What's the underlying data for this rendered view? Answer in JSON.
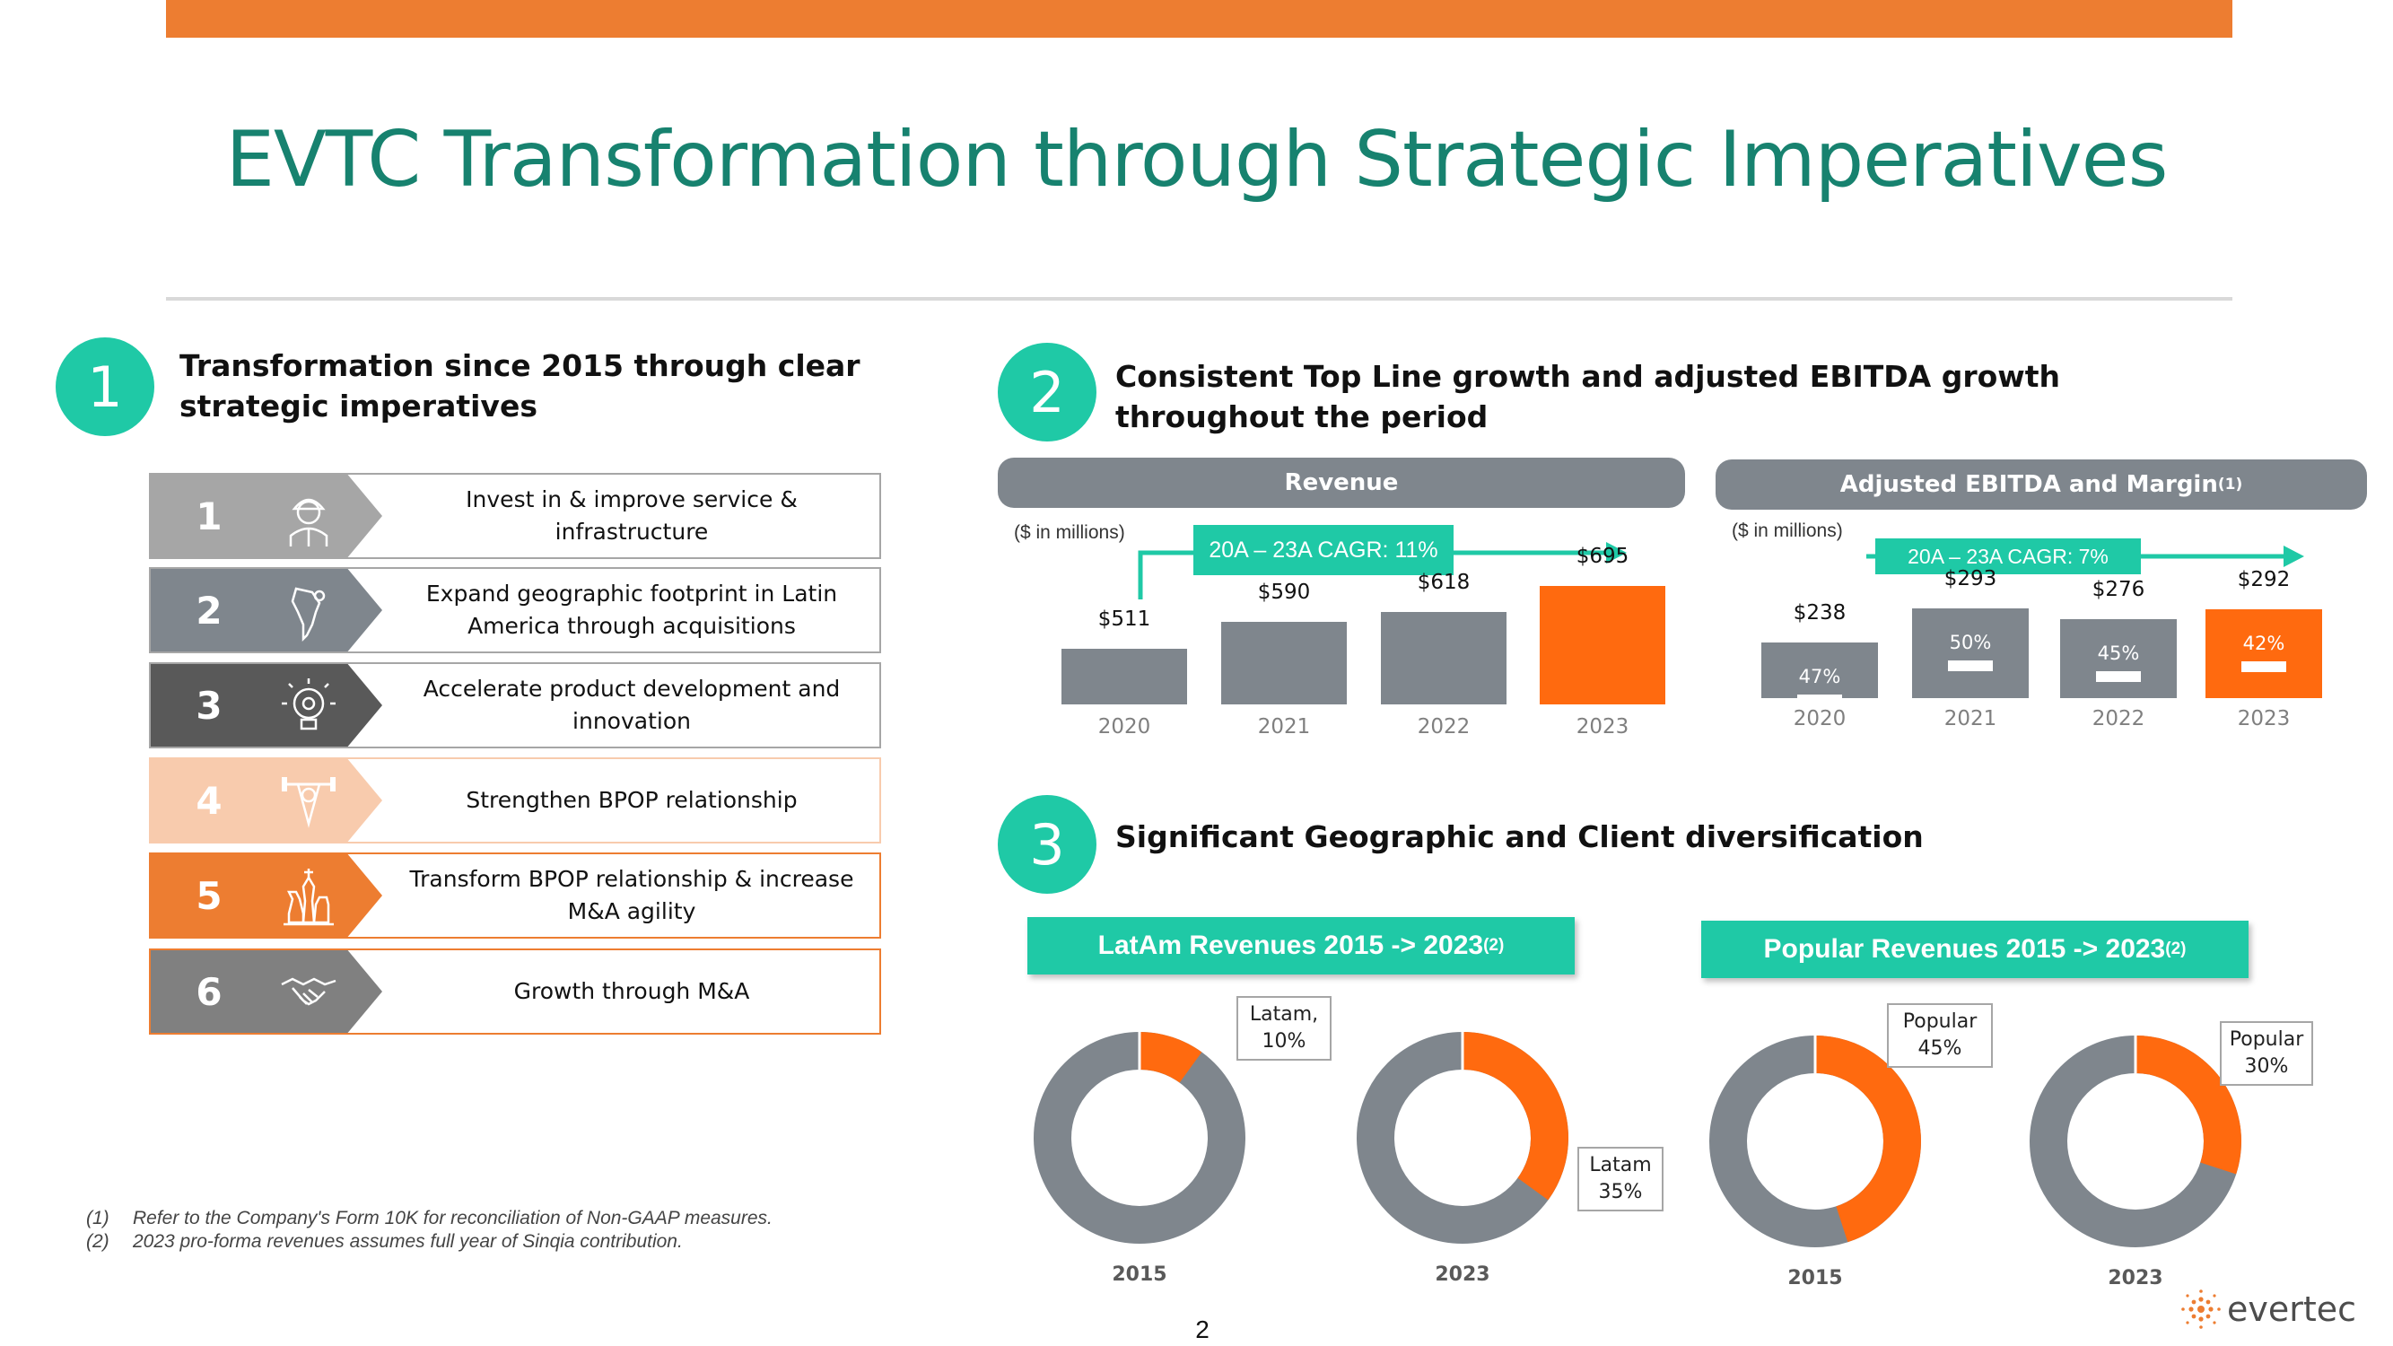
{
  "page": {
    "title": "EVTC Transformation through Strategic Imperatives",
    "page_number": "2",
    "accent": "#ED7D31",
    "teal": "#1FC9A6",
    "title_color": "#17826F",
    "logo_text": "evertec"
  },
  "section1": {
    "number": "1",
    "title": "Transformation since 2015 through clear strategic imperatives",
    "items": [
      {
        "num": "1",
        "text": "Invest in & improve service & infrastructure",
        "icon": "worker-icon",
        "color": "#A6A6A6"
      },
      {
        "num": "2",
        "text": "Expand geographic footprint in Latin America through acquisitions",
        "icon": "latam-map-icon",
        "color": "#7F868D"
      },
      {
        "num": "3",
        "text": "Accelerate product development and innovation",
        "icon": "lightbulb-gear-icon",
        "color": "#595959"
      },
      {
        "num": "4",
        "text": "Strengthen BPOP relationship",
        "icon": "weightlifter-icon",
        "color": "#F8CBAD"
      },
      {
        "num": "5",
        "text": "Transform BPOP relationship & increase M&A agility",
        "icon": "chess-pieces-icon",
        "color": "#ED7D31"
      },
      {
        "num": "6",
        "text": "Growth through M&A",
        "icon": "handshake-icon",
        "color": "#808080"
      }
    ]
  },
  "section2": {
    "number": "2",
    "title": "Consistent Top Line growth and adjusted EBITDA growth throughout the period"
  },
  "section3": {
    "number": "3",
    "title": "Significant Geographic and Client diversification"
  },
  "chart_data": [
    {
      "type": "bar",
      "title": "Revenue",
      "units_note": "($ in millions)",
      "annotation": "20A – 23A CAGR: 11%",
      "categories": [
        "2020",
        "2021",
        "2022",
        "2023"
      ],
      "values": [
        511,
        590,
        618,
        695
      ],
      "value_labels": [
        "$511",
        "$590",
        "$618",
        "$695"
      ],
      "colors": [
        "#7F868D",
        "#7F868D",
        "#7F868D",
        "#FF6A0F"
      ]
    },
    {
      "type": "bar",
      "title": "Adjusted EBITDA and Margin",
      "title_sup": "(1)",
      "units_note": "($ in millions)",
      "annotation": "20A – 23A CAGR: 7%",
      "categories": [
        "2020",
        "2021",
        "2022",
        "2023"
      ],
      "values": [
        238,
        293,
        276,
        292
      ],
      "value_labels": [
        "$238",
        "$293",
        "$276",
        "$292"
      ],
      "margins": [
        "47%",
        "50%",
        "45%",
        "42%"
      ],
      "colors": [
        "#7F868D",
        "#7F868D",
        "#7F868D",
        "#FF6A0F"
      ]
    },
    {
      "type": "pie",
      "title": "LatAm Revenues 2015 -> 2023",
      "title_sup": "(2)",
      "series": [
        {
          "name": "2015",
          "share": 10,
          "callout": [
            "Latam,",
            "10%"
          ]
        },
        {
          "name": "2023",
          "share": 35,
          "callout": [
            "Latam",
            "35%"
          ]
        }
      ],
      "highlight_color": "#FF6A0F",
      "rest_color": "#7F868D"
    },
    {
      "type": "pie",
      "title": "Popular Revenues 2015 -> 2023",
      "title_sup": "(2)",
      "series": [
        {
          "name": "2015",
          "share": 45,
          "callout": [
            "Popular",
            "45%"
          ]
        },
        {
          "name": "2023",
          "share": 30,
          "callout": [
            "Popular",
            "30%"
          ]
        }
      ],
      "highlight_color": "#FF6A0F",
      "rest_color": "#7F868D"
    }
  ],
  "footnotes": [
    {
      "mark": "(1)",
      "text": "Refer to the Company's Form 10K for reconciliation of Non-GAAP measures."
    },
    {
      "mark": "(2)",
      "text": "2023 pro-forma revenues assumes full year of Sinqia contribution."
    }
  ]
}
